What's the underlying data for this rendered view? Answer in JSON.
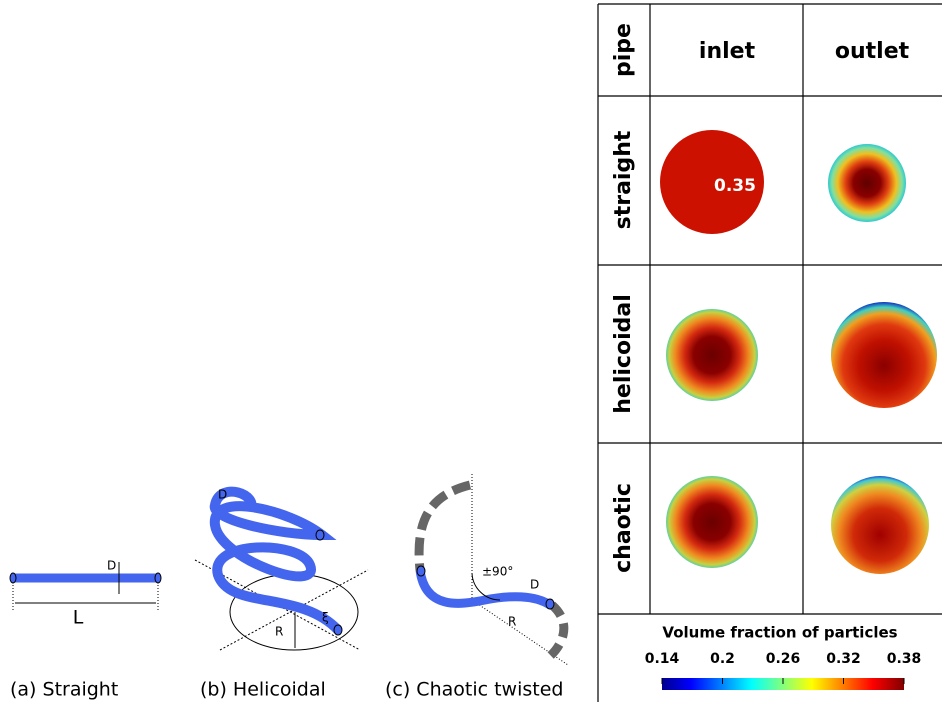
{
  "diagrams": [
    {
      "caption": "(a) Straight",
      "labels": [
        "D",
        "L"
      ]
    },
    {
      "caption": "(b) Helicoidal",
      "labels": [
        "D",
        "R",
        "ξ"
      ]
    },
    {
      "caption": "(c) Chaotic twisted",
      "labels": [
        "±90°",
        "D",
        "R"
      ]
    }
  ],
  "table": {
    "corner": "pipe",
    "columns": [
      "inlet",
      "outlet"
    ],
    "rows": [
      "straight",
      "helicoidal",
      "chaotic"
    ],
    "annotation": 0.35
  },
  "colorbar": {
    "title": "Volume fraction of particles",
    "range": [
      0.14,
      0.38
    ],
    "ticks": [
      0.14,
      0.2,
      0.26,
      0.32,
      0.38
    ]
  }
}
